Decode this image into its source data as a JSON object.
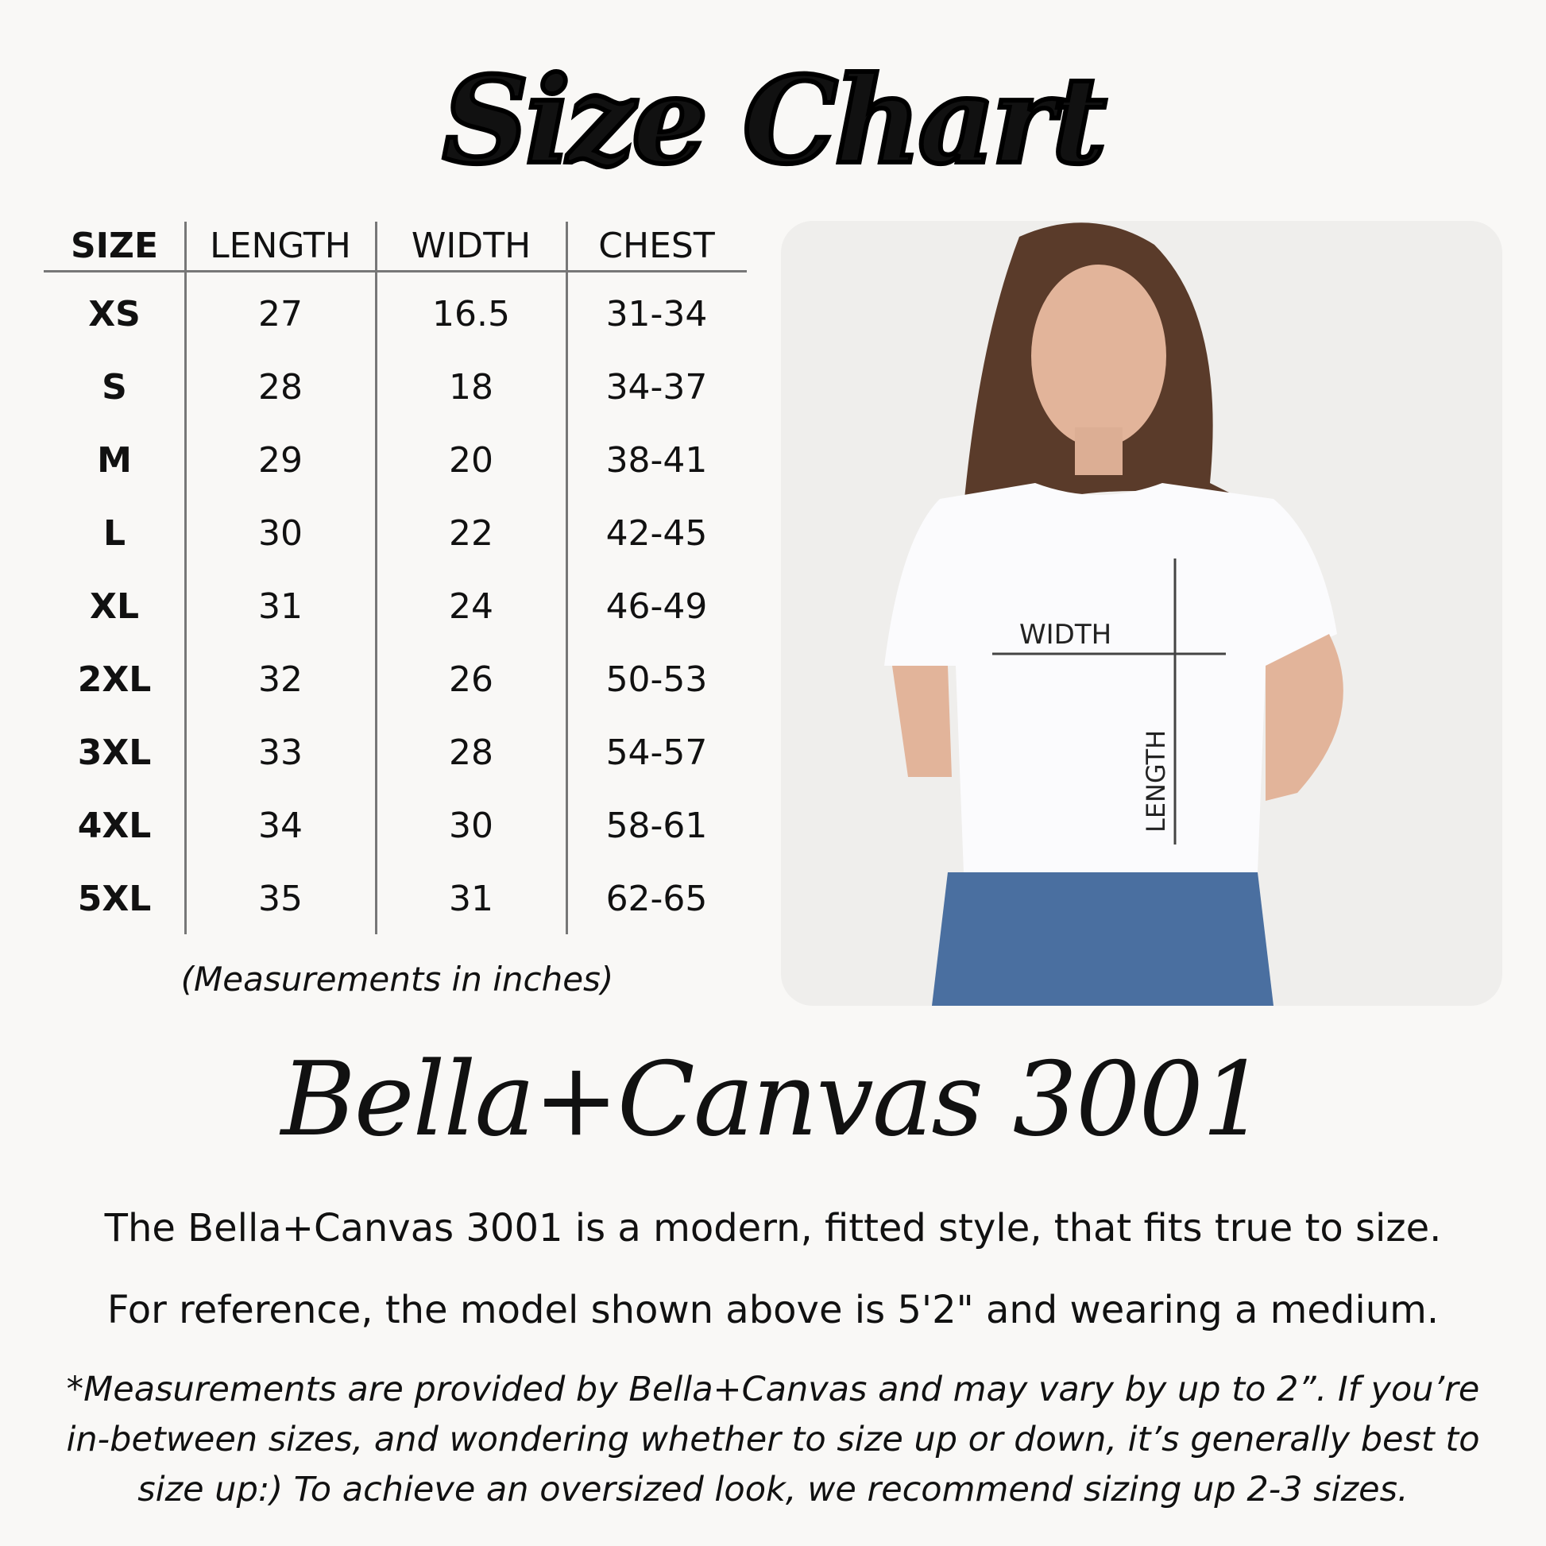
{
  "title": "Size Chart",
  "table": {
    "headers": [
      "SIZE",
      "LENGTH",
      "WIDTH",
      "CHEST"
    ],
    "rows": [
      [
        "XS",
        "27",
        "16.5",
        "31-34"
      ],
      [
        "S",
        "28",
        "18",
        "34-37"
      ],
      [
        "M",
        "29",
        "20",
        "38-41"
      ],
      [
        "L",
        "30",
        "22",
        "42-45"
      ],
      [
        "XL",
        "31",
        "24",
        "46-49"
      ],
      [
        "2XL",
        "32",
        "26",
        "50-53"
      ],
      [
        "3XL",
        "33",
        "28",
        "54-57"
      ],
      [
        "4XL",
        "34",
        "30",
        "58-61"
      ],
      [
        "5XL",
        "35",
        "31",
        "62-65"
      ]
    ],
    "note": "(Measurements in inches)"
  },
  "photo": {
    "width_label": "WIDTH",
    "length_label": "LENGTH"
  },
  "brand": "Bella+Canvas 3001",
  "description": [
    "The Bella+Canvas 3001 is a modern, fitted style, that fits true to size.",
    "For reference, the model shown above is 5'2\" and wearing a medium."
  ],
  "footnote": "*Measurements are provided by Bella+Canvas and may vary by up to 2”. If you’re in-between sizes, and wondering whether to size up or down, it’s generally best to size up:) To achieve an oversized look, we recommend sizing up 2-3 sizes."
}
